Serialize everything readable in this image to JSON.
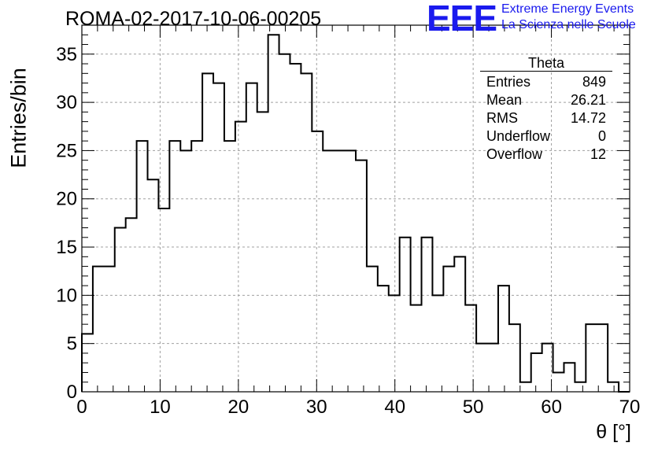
{
  "title": "ROMA-02-2017-10-06-00205",
  "logo": {
    "mark": "EEE",
    "line1": "Extreme Energy Events",
    "line2": "La Scienza nelle Scuole"
  },
  "stats": {
    "title": "Theta",
    "rows": [
      {
        "label": "Entries",
        "value": "849"
      },
      {
        "label": "Mean",
        "value": "26.21"
      },
      {
        "label": "RMS",
        "value": "14.72"
      },
      {
        "label": "Underflow",
        "value": "0"
      },
      {
        "label": "Overflow",
        "value": "12"
      }
    ]
  },
  "colors": {
    "line": "#000000",
    "grid": "#a0a0a0",
    "logo": "#1a1aee"
  },
  "chart_data": {
    "type": "histogram",
    "title": "ROMA-02-2017-10-06-00205",
    "xlabel": "θ [°]",
    "ylabel": "Entries/bin",
    "xlim": [
      0,
      70
    ],
    "ylim": [
      0,
      38
    ],
    "grid": true,
    "bin_width": 1.4,
    "bin_start": 0,
    "x_ticks": [
      0,
      10,
      20,
      30,
      40,
      50,
      60,
      70
    ],
    "y_ticks": [
      0,
      5,
      10,
      15,
      20,
      25,
      30,
      35
    ],
    "values": [
      6,
      13,
      13,
      17,
      18,
      26,
      22,
      19,
      26,
      25,
      26,
      33,
      32,
      26,
      28,
      32,
      29,
      37,
      35,
      34,
      33,
      27,
      25,
      25,
      25,
      24,
      13,
      11,
      10,
      16,
      9,
      16,
      10,
      13,
      14,
      9,
      5,
      5,
      11,
      7,
      1,
      4,
      5,
      2,
      3,
      1,
      7,
      7,
      1,
      0
    ]
  }
}
